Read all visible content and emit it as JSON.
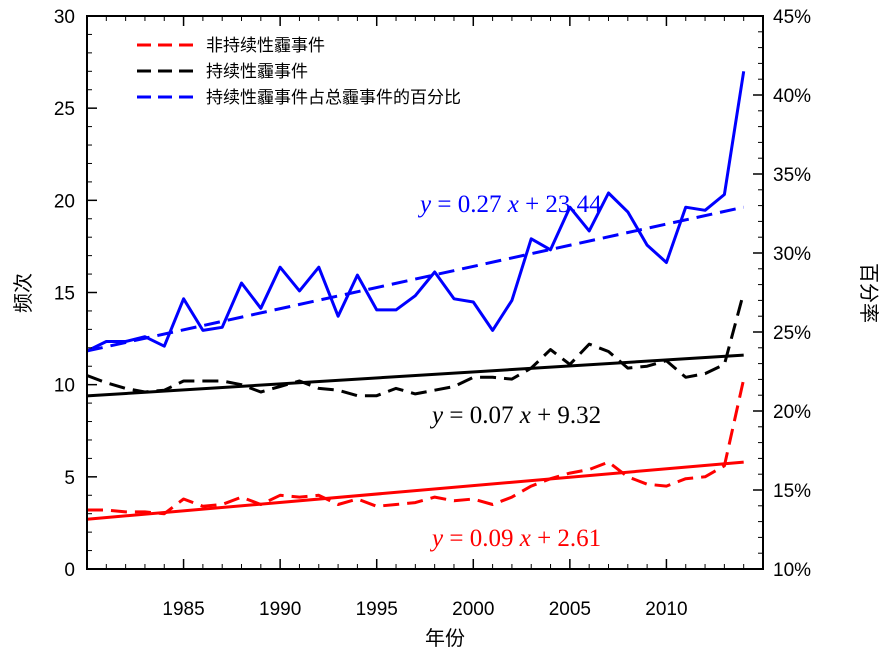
{
  "chart_data": {
    "type": "line",
    "xlabel": "年份",
    "ylabel": "频次",
    "y2label": "百分率",
    "xlim": [
      1980,
      2015
    ],
    "ylim": [
      0,
      30
    ],
    "y2lim": [
      10,
      45
    ],
    "x_ticks": [
      1985,
      1990,
      1995,
      2000,
      2005,
      2010
    ],
    "x_tick_labels": [
      "1985",
      "1990",
      "1995",
      "2000",
      "2005",
      "2010"
    ],
    "y_ticks": [
      0,
      5,
      10,
      15,
      20,
      25,
      30
    ],
    "y_tick_labels": [
      "0",
      "5",
      "10",
      "15",
      "20",
      "25",
      "30"
    ],
    "y2_ticks": [
      10,
      15,
      20,
      25,
      30,
      35,
      40,
      45
    ],
    "y2_tick_labels": [
      "10%",
      "15%",
      "20%",
      "25%",
      "30%",
      "35%",
      "40%",
      "45%"
    ],
    "grid": false,
    "legend_position": "top-left",
    "x": [
      1980,
      1981,
      1982,
      1983,
      1984,
      1985,
      1986,
      1987,
      1988,
      1989,
      1990,
      1991,
      1992,
      1993,
      1994,
      1995,
      1996,
      1997,
      1998,
      1999,
      2000,
      2001,
      2002,
      2003,
      2004,
      2005,
      2006,
      2007,
      2008,
      2009,
      2010,
      2011,
      2012,
      2013,
      2014
    ],
    "series": [
      {
        "name": "非持续性霾事件",
        "axis": "left",
        "color": "#ff0000",
        "style": "dashed",
        "values": [
          3.2,
          3.2,
          3.1,
          3.1,
          3.0,
          3.8,
          3.4,
          3.5,
          3.9,
          3.5,
          4.0,
          3.9,
          4.0,
          3.5,
          3.8,
          3.4,
          3.5,
          3.6,
          3.9,
          3.7,
          3.8,
          3.5,
          3.9,
          4.5,
          4.9,
          5.2,
          5.4,
          5.8,
          5.0,
          4.6,
          4.5,
          4.9,
          5.0,
          5.6,
          10.3
        ]
      },
      {
        "name": "持续性霾事件",
        "axis": "left",
        "color": "#000000",
        "style": "dashed",
        "values": [
          10.5,
          10.1,
          9.8,
          9.6,
          9.7,
          10.2,
          10.2,
          10.2,
          10.0,
          9.6,
          9.9,
          10.2,
          9.8,
          9.7,
          9.4,
          9.4,
          9.8,
          9.5,
          9.7,
          9.9,
          10.4,
          10.4,
          10.3,
          10.9,
          11.9,
          11.1,
          12.2,
          11.8,
          10.9,
          11.0,
          11.3,
          10.4,
          10.6,
          11.1,
          15.0
        ]
      },
      {
        "name": "持续性霾事件占总霾事件的百分比",
        "axis": "right",
        "color": "#0000ff",
        "style": "solid",
        "values": [
          23.8,
          24.4,
          24.4,
          24.7,
          24.1,
          27.1,
          25.1,
          25.3,
          28.1,
          26.5,
          29.1,
          27.6,
          29.1,
          26.0,
          28.6,
          26.4,
          26.4,
          27.3,
          28.8,
          27.1,
          26.9,
          25.1,
          27.0,
          30.9,
          30.2,
          32.9,
          31.4,
          33.8,
          32.6,
          30.5,
          29.4,
          32.9,
          32.7,
          33.7,
          41.5
        ]
      }
    ],
    "trend_lines": [
      {
        "color": "#0000ff",
        "style": "dashed",
        "axis": "right",
        "x": [
          1980,
          2014
        ],
        "y": [
          23.8,
          32.9
        ]
      },
      {
        "color": "#000000",
        "style": "solid",
        "axis": "left",
        "x": [
          1980,
          2014
        ],
        "y": [
          9.39,
          11.6
        ]
      },
      {
        "color": "#ff0000",
        "style": "solid",
        "axis": "left",
        "x": [
          1980,
          2014
        ],
        "y": [
          2.7,
          5.8
        ]
      }
    ],
    "annotations": [
      {
        "color": "#0000ff",
        "y": "y",
        "eq": "= 0.27",
        "x": "x",
        "rest": "+ 23.44"
      },
      {
        "color": "#000000",
        "y": "y",
        "eq": "= 0.07",
        "x": "x",
        "rest": "+ 9.32"
      },
      {
        "color": "#ff0000",
        "y": "y",
        "eq": "= 0.09",
        "x": "x",
        "rest": "+ 2.61"
      }
    ]
  }
}
